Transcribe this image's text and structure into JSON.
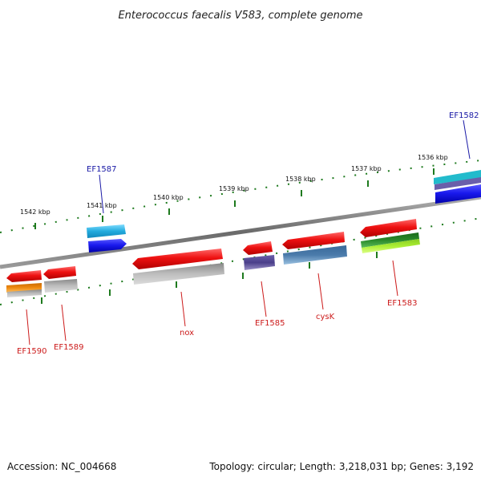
{
  "title": "Enterococcus faecalis V583, complete genome",
  "footer": {
    "accession": "Accession: NC_004668",
    "summary": "Topology: circular; Length: 3,218,031 bp; Genes: 3,192"
  },
  "ticks": [
    {
      "label": "1542 kbp"
    },
    {
      "label": "1541 kbp"
    },
    {
      "label": "1540 kbp"
    },
    {
      "label": "1539 kbp"
    },
    {
      "label": "1538 kbp"
    },
    {
      "label": "1537 kbp"
    },
    {
      "label": "1536 kbp"
    }
  ],
  "gene_labels": [
    {
      "name": "EF1587",
      "color": "#1a1aa6"
    },
    {
      "name": "EF1582",
      "color": "#1a1aa6"
    },
    {
      "name": "EF1590",
      "color": "#cc1a1a"
    },
    {
      "name": "EF1589",
      "color": "#cc1a1a"
    },
    {
      "name": "nox",
      "color": "#cc1a1a"
    },
    {
      "name": "EF1585",
      "color": "#cc1a1a"
    },
    {
      "name": "cysK",
      "color": "#cc1a1a"
    },
    {
      "name": "EF1583",
      "color": "#cc1a1a"
    }
  ],
  "colors": {
    "backbone": "#7a7a7a",
    "tick": "#1e7a1e",
    "gene_red": "#ee1111",
    "gene_blue": "#1a1aee",
    "gene_cyan": "#22aadd",
    "gene_grey": "#b5b5b5",
    "gene_purple": "#4a3f8a",
    "gene_steel": "#4a7aaa",
    "gene_orange": "#ee8a11",
    "gene_green": "#2a8a2a",
    "gene_lime": "#aaee33"
  }
}
